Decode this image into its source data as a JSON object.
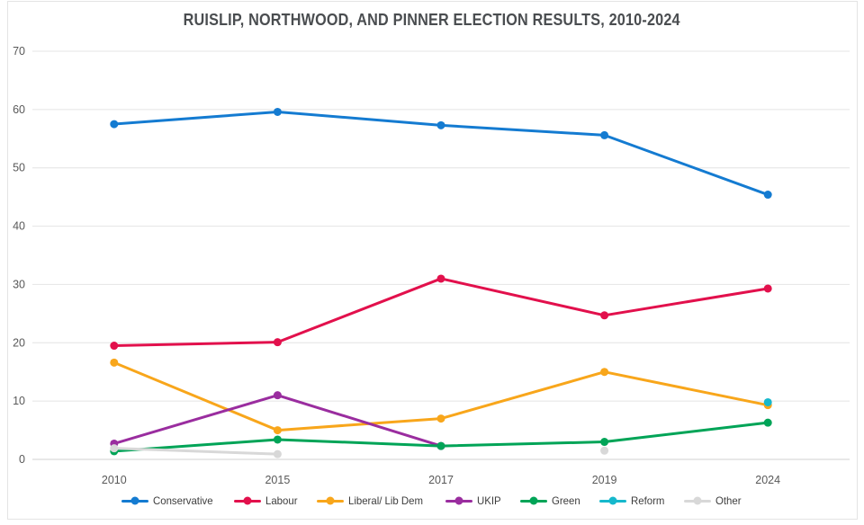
{
  "title": "RUISLIP, NORTHWOOD, AND PINNER ELECTION RESULTS, 2010-2024",
  "chart_data": {
    "type": "line",
    "title": "RUISLIP, NORTHWOOD, AND PINNER ELECTION RESULTS, 2010-2024",
    "categories": [
      "2010",
      "2015",
      "2017",
      "2019",
      "2024"
    ],
    "series": [
      {
        "name": "Conservative",
        "color": "#147bd1",
        "values": [
          57.5,
          59.6,
          57.3,
          55.6,
          45.4
        ]
      },
      {
        "name": "Labour",
        "color": "#e2104c",
        "values": [
          19.5,
          20.1,
          31.0,
          24.7,
          29.3
        ]
      },
      {
        "name": "Liberal/ Lib Dem",
        "color": "#f8a61b",
        "values": [
          16.6,
          5.0,
          7.0,
          15.0,
          9.3
        ]
      },
      {
        "name": "UKIP",
        "color": "#9a2d9f",
        "values": [
          2.7,
          11.0,
          2.3,
          null,
          null
        ]
      },
      {
        "name": "Green",
        "color": "#00a457",
        "values": [
          1.4,
          3.4,
          2.3,
          3.0,
          6.3
        ]
      },
      {
        "name": "Reform",
        "color": "#16b8cc",
        "values": [
          null,
          null,
          null,
          null,
          9.8
        ]
      },
      {
        "name": "Other",
        "color": "#d8d8d8",
        "values": [
          1.9,
          0.9,
          null,
          1.5,
          null
        ]
      }
    ],
    "xlabel": "",
    "ylabel": "",
    "ylim": [
      0,
      70
    ],
    "ytick_step": 10,
    "yticks": [
      "0",
      "10",
      "20",
      "30",
      "40",
      "50",
      "60",
      "70"
    ],
    "grid": true,
    "legend_position": "bottom",
    "colors": {
      "background": "#ffffff",
      "gridline": "#e4e4e4",
      "baseline": "#d2d2d2",
      "axis_text": "#595959",
      "title_text": "#4a4d50"
    }
  }
}
